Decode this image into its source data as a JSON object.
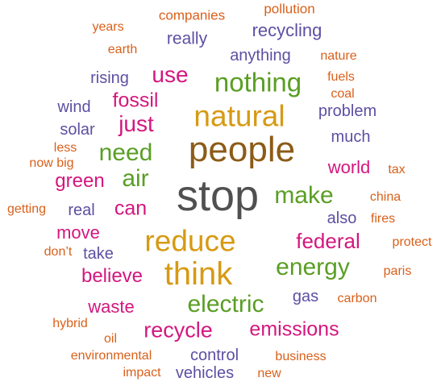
{
  "colors": {
    "orange": "#d9601a",
    "purple": "#5e4fa2",
    "magenta": "#d4177e",
    "green": "#5a9e24",
    "gold": "#d69a13",
    "brown": "#8c5b17",
    "gray": "#505050"
  },
  "words": [
    {
      "id": "stop",
      "text": "stop",
      "color": "gray"
    },
    {
      "id": "people",
      "text": "people",
      "color": "brown"
    },
    {
      "id": "natural",
      "text": "natural",
      "color": "gold"
    },
    {
      "id": "reduce",
      "text": "reduce",
      "color": "gold"
    },
    {
      "id": "think",
      "text": "think",
      "color": "gold"
    },
    {
      "id": "nothing",
      "text": "nothing",
      "color": "green"
    },
    {
      "id": "energy",
      "text": "energy",
      "color": "green"
    },
    {
      "id": "electric",
      "text": "electric",
      "color": "green"
    },
    {
      "id": "make",
      "text": "make",
      "color": "green"
    },
    {
      "id": "need",
      "text": "need",
      "color": "green"
    },
    {
      "id": "air",
      "text": "air",
      "color": "green"
    },
    {
      "id": "federal",
      "text": "federal",
      "color": "magenta"
    },
    {
      "id": "recycle",
      "text": "recycle",
      "color": "magenta"
    },
    {
      "id": "emissions",
      "text": "emissions",
      "color": "magenta"
    },
    {
      "id": "use",
      "text": "use",
      "color": "magenta"
    },
    {
      "id": "just",
      "text": "just",
      "color": "magenta"
    },
    {
      "id": "fossil",
      "text": "fossil",
      "color": "magenta"
    },
    {
      "id": "can",
      "text": "can",
      "color": "magenta"
    },
    {
      "id": "green",
      "text": "green",
      "color": "magenta"
    },
    {
      "id": "world",
      "text": "world",
      "color": "magenta"
    },
    {
      "id": "move",
      "text": "move",
      "color": "magenta"
    },
    {
      "id": "believe",
      "text": "believe",
      "color": "magenta"
    },
    {
      "id": "waste",
      "text": "waste",
      "color": "magenta"
    },
    {
      "id": "recycling",
      "text": "recycling",
      "color": "purple"
    },
    {
      "id": "really",
      "text": "really",
      "color": "purple"
    },
    {
      "id": "anything",
      "text": "anything",
      "color": "purple"
    },
    {
      "id": "rising",
      "text": "rising",
      "color": "purple"
    },
    {
      "id": "wind",
      "text": "wind",
      "color": "purple"
    },
    {
      "id": "solar",
      "text": "solar",
      "color": "purple"
    },
    {
      "id": "problem",
      "text": "problem",
      "color": "purple"
    },
    {
      "id": "much",
      "text": "much",
      "color": "purple"
    },
    {
      "id": "real",
      "text": "real",
      "color": "purple"
    },
    {
      "id": "also",
      "text": "also",
      "color": "purple"
    },
    {
      "id": "take",
      "text": "take",
      "color": "purple"
    },
    {
      "id": "gas",
      "text": "gas",
      "color": "purple"
    },
    {
      "id": "control",
      "text": "control",
      "color": "purple"
    },
    {
      "id": "vehicles",
      "text": "vehicles",
      "color": "purple"
    },
    {
      "id": "companies",
      "text": "companies",
      "color": "orange"
    },
    {
      "id": "pollution",
      "text": "pollution",
      "color": "orange"
    },
    {
      "id": "years",
      "text": "years",
      "color": "orange"
    },
    {
      "id": "earth",
      "text": "earth",
      "color": "orange"
    },
    {
      "id": "nature",
      "text": "nature",
      "color": "orange"
    },
    {
      "id": "fuels",
      "text": "fuels",
      "color": "orange"
    },
    {
      "id": "coal",
      "text": "coal",
      "color": "orange"
    },
    {
      "id": "less",
      "text": "less",
      "color": "orange"
    },
    {
      "id": "now-big",
      "text": "now big",
      "color": "orange"
    },
    {
      "id": "tax",
      "text": "tax",
      "color": "orange"
    },
    {
      "id": "getting",
      "text": "getting",
      "color": "orange"
    },
    {
      "id": "china",
      "text": "china",
      "color": "orange"
    },
    {
      "id": "fires",
      "text": "fires",
      "color": "orange"
    },
    {
      "id": "protect",
      "text": "protect",
      "color": "orange"
    },
    {
      "id": "dont",
      "text": "don’t",
      "color": "orange"
    },
    {
      "id": "paris",
      "text": "paris",
      "color": "orange"
    },
    {
      "id": "carbon",
      "text": "carbon",
      "color": "orange"
    },
    {
      "id": "hybrid",
      "text": "hybrid",
      "color": "orange"
    },
    {
      "id": "oil",
      "text": "oil",
      "color": "orange"
    },
    {
      "id": "environmental",
      "text": "environmental",
      "color": "orange"
    },
    {
      "id": "business",
      "text": "business",
      "color": "orange"
    },
    {
      "id": "impact",
      "text": "impact",
      "color": "orange"
    },
    {
      "id": "new",
      "text": "new",
      "color": "orange"
    }
  ]
}
